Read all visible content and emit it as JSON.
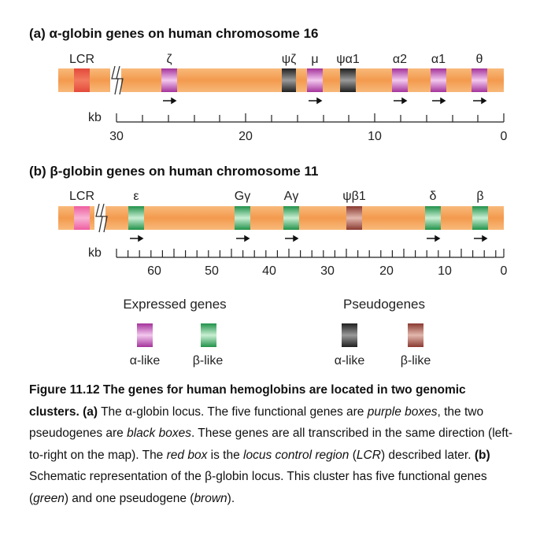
{
  "panel_a": {
    "heading": "(a)  α-globin genes on human chromosome 16",
    "lcr_label": "LCR",
    "gene_labels": [
      "ζ",
      "ψζ",
      "μ",
      "ψα1",
      "α2",
      "α1",
      "θ"
    ],
    "scale_unit": "kb",
    "scale_ticks": [
      "30",
      "20",
      "10",
      "0"
    ]
  },
  "panel_b": {
    "heading": "(b)  β-globin genes on human chromosome 11",
    "lcr_label": "LCR",
    "gene_labels": [
      "ε",
      "Gγ",
      "Aγ",
      "ψβ1",
      "δ",
      "β"
    ],
    "scale_unit": "kb",
    "scale_ticks": [
      "60",
      "50",
      "40",
      "30",
      "20",
      "10",
      "0"
    ]
  },
  "legend": {
    "expressed_title": "Expressed genes",
    "pseudo_title": "Pseudogenes",
    "items": [
      "α-like",
      "β-like",
      "α-like",
      "β-like"
    ]
  },
  "caption": {
    "fig_label": "Figure 11.12",
    "title": "The genes for human hemoglobins are located in two genomic clusters.",
    "a_label": "(a)",
    "a_text_1": "The α-globin locus. The five functional genes are",
    "a_purple": "purple boxes",
    "a_text_2": ", the two pseudogenes are",
    "a_black": "black boxes",
    "a_text_3": ". These genes are all transcribed in the same direction (left-to-right on the map). The",
    "a_red": "red box",
    "a_text_4": "is the",
    "a_lcr": "locus control region",
    "a_text_5": "(",
    "a_lcr_abbr": "LCR",
    "a_text_6": ") described later.",
    "b_label": "(b)",
    "b_text_1": "Schematic representation of the β-globin locus. This cluster has five functional genes (",
    "b_green": "green",
    "b_text_2": ") and one pseudogene (",
    "b_brown": "brown",
    "b_text_3": ")."
  },
  "colors": {
    "chromosome": "#f5a55c",
    "lcr_a": "#e94f3d",
    "lcr_b": "#f06aa8",
    "alpha_expressed": "#b53aa8",
    "beta_expressed": "#2e9d4f",
    "alpha_pseudo": "#2b2b2b",
    "beta_pseudo": "#8f3f36"
  }
}
